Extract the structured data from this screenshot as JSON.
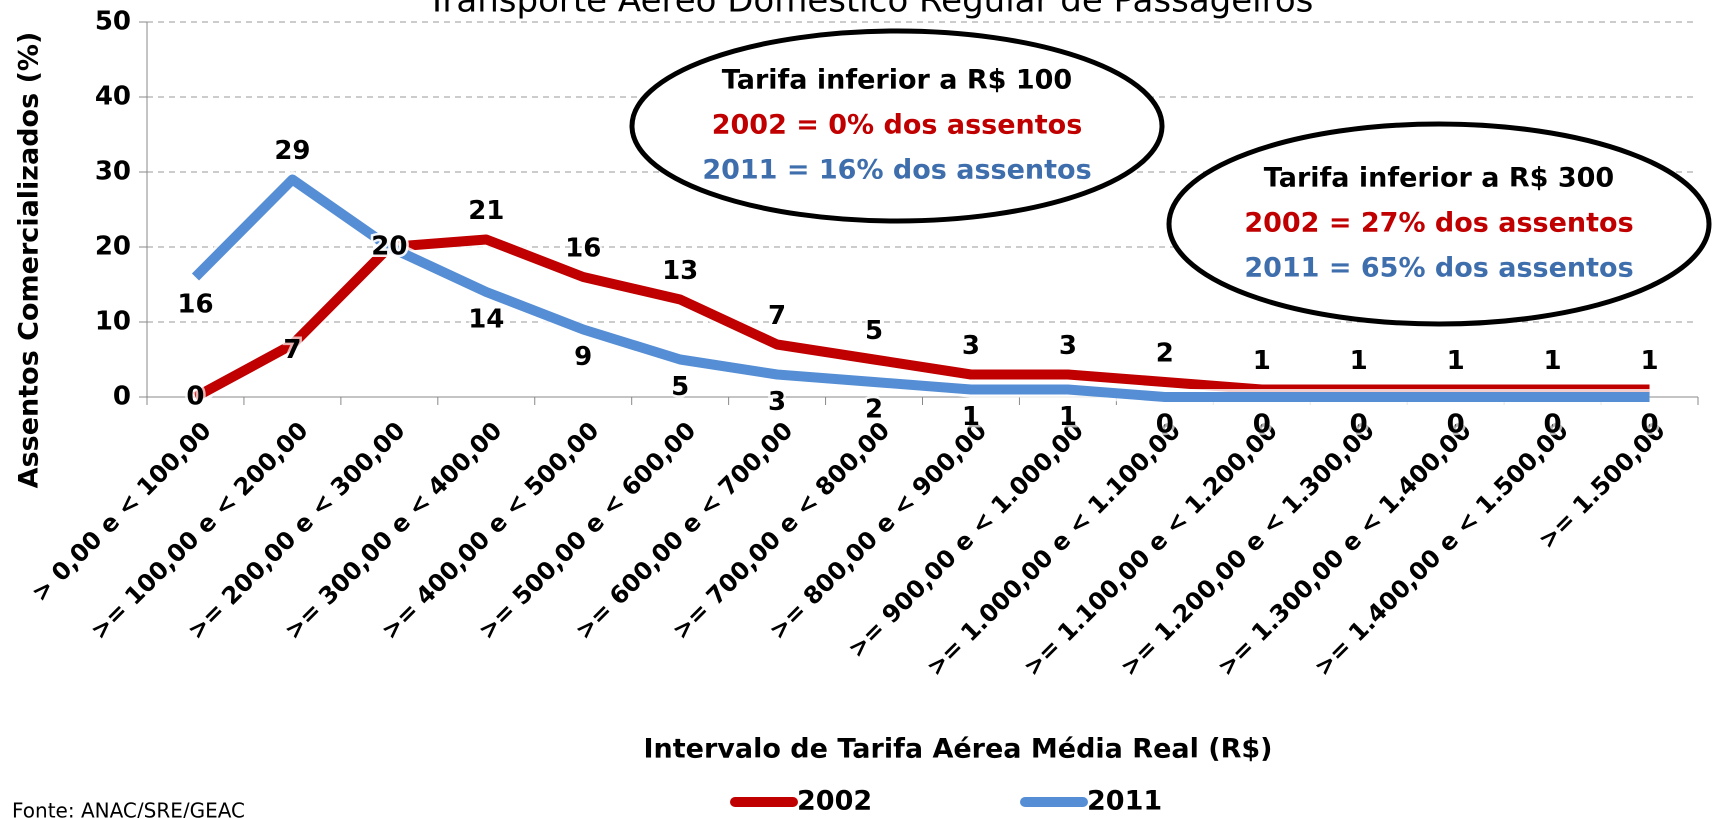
{
  "chart_data": {
    "type": "line",
    "title": "Transporte Aéreo Doméstico Regular de Passageiros",
    "x_label": "Intervalo de Tarifa Aérea Média Real (R$)",
    "y_label": "Assentos Comercializados (%)",
    "source": "Fonte: ANAC/SRE/GEAC",
    "categories": [
      "> 0,00 e < 100,00",
      ">= 100,00 e < 200,00",
      ">= 200,00 e < 300,00",
      ">= 300,00 e < 400,00",
      ">= 400,00 e < 500,00",
      ">= 500,00 e < 600,00",
      ">= 600,00 e < 700,00",
      ">= 700,00 e < 800,00",
      ">= 800,00 e < 900,00",
      ">= 900,00 e < 1.000,00",
      ">= 1.000,00 e < 1.100,00",
      ">= 1.100,00 e < 1.200,00",
      ">= 1.200,00 e < 1.300,00",
      ">= 1.300,00 e < 1.400,00",
      ">= 1.400,00 e < 1.500,00",
      ">= 1.500,00"
    ],
    "series": [
      {
        "name": "2002",
        "color": "#c00000",
        "values": [
          0,
          7,
          20,
          21,
          16,
          13,
          7,
          5,
          3,
          3,
          2,
          1,
          1,
          1,
          1,
          1
        ]
      },
      {
        "name": "2011",
        "color": "#558ed5",
        "values": [
          16,
          29,
          20,
          14,
          9,
          5,
          3,
          2,
          1,
          1,
          0,
          0,
          0,
          0,
          0,
          0
        ]
      }
    ],
    "ylim": [
      0,
      50
    ],
    "yticks": [
      0,
      10,
      20,
      30,
      40,
      50
    ],
    "grid": true,
    "legend": "bottom",
    "annotations": [
      {
        "lines": [
          "Tarifa inferior a R$ 100",
          "2002 = 0% dos assentos",
          "2011 = 16% dos assentos"
        ]
      },
      {
        "lines": [
          "Tarifa inferior a R$ 300",
          "2002 = 27% dos assentos",
          "2011 = 65% dos assentos"
        ]
      }
    ]
  }
}
